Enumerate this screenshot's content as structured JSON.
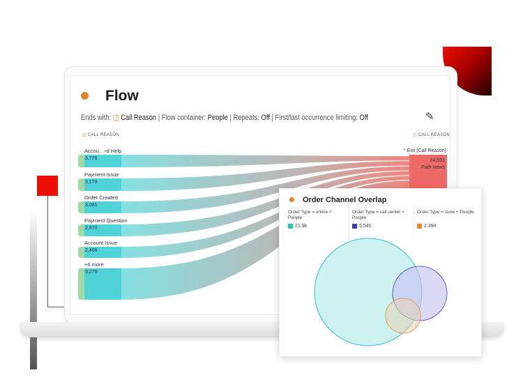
{
  "flow": {
    "title": "Flow",
    "filters": {
      "ends_with_label": "Ends with:",
      "ends_with_value": "Call Reason",
      "container_label": "Flow container:",
      "container_value": "People",
      "repeats_label": "Repeats:",
      "repeats_value": "Off",
      "limiting_label": "First/last occurrence limiting:",
      "limiting_value": "Off",
      "sep": "|"
    },
    "left_header": "CALL REASON",
    "right_header": "CALL REASON",
    "nodes": [
      {
        "label": "Accou... rd Help",
        "value": "3,776"
      },
      {
        "label": "Payment Issue",
        "value": "3,179"
      },
      {
        "label": "Order Created",
        "value": "3,081"
      },
      {
        "label": "Payment Question",
        "value": "2,870"
      },
      {
        "label": "Account Issue",
        "value": "2,406"
      },
      {
        "label": "+6 more",
        "value": "9,279"
      }
    ],
    "exit": {
      "label": "* Exit (Call Reason)",
      "value": "24,591",
      "unit": "Path views"
    }
  },
  "overlap": {
    "title": "Order Channel Overlap",
    "segments": [
      {
        "label": "Order Type = online + People",
        "value": "21.9k",
        "color": "#2bbfc4"
      },
      {
        "label": "Order Type = call center + People",
        "value": "5,545",
        "color": "#3f3bb0"
      },
      {
        "label": "Order Type = store + People",
        "value": "2,394",
        "color": "#e8892a"
      }
    ]
  },
  "colors": {
    "accent": "#e0832a",
    "flow_start": "#4fd3d8",
    "flow_end": "#ee6a66",
    "brand_red": "#eb1000"
  }
}
